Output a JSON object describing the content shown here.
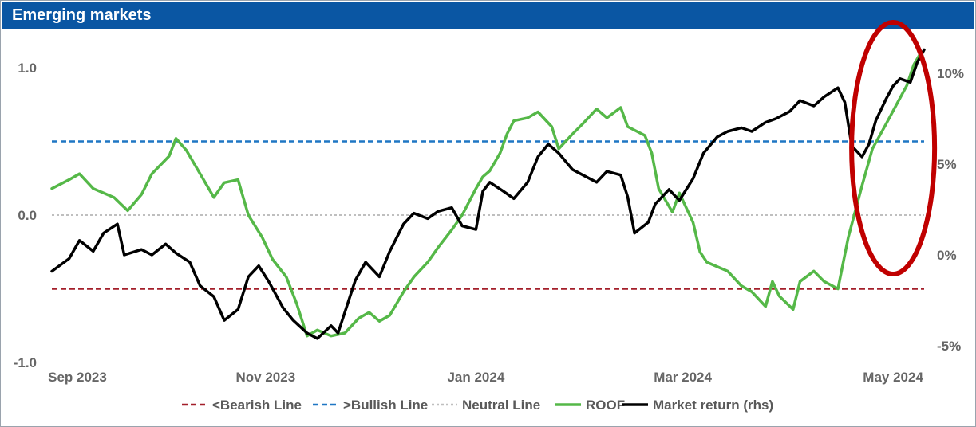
{
  "title": "Emerging markets",
  "chart_data": {
    "type": "line",
    "title": "Emerging markets",
    "x_range": [
      "2023-08-31",
      "2024-05-10"
    ],
    "x_ticks": [
      {
        "label": "Sep 2023",
        "date": "2023-09-01"
      },
      {
        "label": "Nov 2023",
        "date": "2023-11-01"
      },
      {
        "label": "Jan 2024",
        "date": "2024-01-01"
      },
      {
        "label": "Mar 2024",
        "date": "2024-03-01"
      },
      {
        "label": "May 2024",
        "date": "2024-05-01"
      }
    ],
    "y_left": {
      "ticks": [
        "1.0",
        "0.0",
        "-1.0"
      ],
      "values": [
        1.0,
        0.0,
        -1.0
      ],
      "range": [
        -1.0,
        1.25
      ]
    },
    "y_right": {
      "ticks": [
        "10%",
        "5%",
        "0%",
        "-5%"
      ],
      "values": [
        10,
        5,
        0,
        -5
      ],
      "range": [
        -6,
        11.5
      ]
    },
    "reference_lines": [
      {
        "name": "<Bearish Line",
        "value": -0.5,
        "color": "#a31f2a",
        "dash": "dashed"
      },
      {
        "name": ">Bullish Line",
        "value": 0.5,
        "color": "#1f77c4",
        "dash": "dashed"
      },
      {
        "name": "Neutral Line",
        "value": 0.0,
        "color": "#bfbfbf",
        "dash": "dotted"
      }
    ],
    "series": [
      {
        "name": "ROOF",
        "axis": "left",
        "color": "#55b848",
        "points": [
          [
            "2023-08-31",
            0.18
          ],
          [
            "2023-09-05",
            0.24
          ],
          [
            "2023-09-08",
            0.28
          ],
          [
            "2023-09-12",
            0.18
          ],
          [
            "2023-09-18",
            0.12
          ],
          [
            "2023-09-22",
            0.03
          ],
          [
            "2023-09-26",
            0.14
          ],
          [
            "2023-09-29",
            0.28
          ],
          [
            "2023-10-04",
            0.4
          ],
          [
            "2023-10-06",
            0.52
          ],
          [
            "2023-10-09",
            0.44
          ],
          [
            "2023-10-13",
            0.28
          ],
          [
            "2023-10-17",
            0.12
          ],
          [
            "2023-10-20",
            0.22
          ],
          [
            "2023-10-24",
            0.24
          ],
          [
            "2023-10-27",
            0.0
          ],
          [
            "2023-10-31",
            -0.15
          ],
          [
            "2023-11-03",
            -0.3
          ],
          [
            "2023-11-07",
            -0.42
          ],
          [
            "2023-11-10",
            -0.6
          ],
          [
            "2023-11-13",
            -0.82
          ],
          [
            "2023-11-16",
            -0.78
          ],
          [
            "2023-11-20",
            -0.82
          ],
          [
            "2023-11-24",
            -0.8
          ],
          [
            "2023-11-28",
            -0.7
          ],
          [
            "2023-12-01",
            -0.66
          ],
          [
            "2023-12-04",
            -0.72
          ],
          [
            "2023-12-07",
            -0.68
          ],
          [
            "2023-12-11",
            -0.52
          ],
          [
            "2023-12-14",
            -0.42
          ],
          [
            "2023-12-18",
            -0.32
          ],
          [
            "2023-12-21",
            -0.22
          ],
          [
            "2023-12-25",
            -0.1
          ],
          [
            "2023-12-28",
            0.0
          ],
          [
            "2024-01-01",
            0.18
          ],
          [
            "2024-01-03",
            0.26
          ],
          [
            "2024-01-05",
            0.3
          ],
          [
            "2024-01-08",
            0.42
          ],
          [
            "2024-01-10",
            0.55
          ],
          [
            "2024-01-12",
            0.64
          ],
          [
            "2024-01-16",
            0.66
          ],
          [
            "2024-01-19",
            0.7
          ],
          [
            "2024-01-23",
            0.6
          ],
          [
            "2024-01-25",
            0.45
          ],
          [
            "2024-01-29",
            0.55
          ],
          [
            "2024-02-01",
            0.62
          ],
          [
            "2024-02-05",
            0.72
          ],
          [
            "2024-02-08",
            0.66
          ],
          [
            "2024-02-12",
            0.73
          ],
          [
            "2024-02-14",
            0.6
          ],
          [
            "2024-02-19",
            0.54
          ],
          [
            "2024-02-21",
            0.42
          ],
          [
            "2024-02-23",
            0.18
          ],
          [
            "2024-02-27",
            0.02
          ],
          [
            "2024-02-29",
            0.15
          ],
          [
            "2024-03-04",
            -0.05
          ],
          [
            "2024-03-06",
            -0.25
          ],
          [
            "2024-03-08",
            -0.32
          ],
          [
            "2024-03-12",
            -0.36
          ],
          [
            "2024-03-14",
            -0.38
          ],
          [
            "2024-03-18",
            -0.48
          ],
          [
            "2024-03-21",
            -0.52
          ],
          [
            "2024-03-25",
            -0.62
          ],
          [
            "2024-03-27",
            -0.45
          ],
          [
            "2024-03-29",
            -0.55
          ],
          [
            "2024-04-02",
            -0.64
          ],
          [
            "2024-04-04",
            -0.45
          ],
          [
            "2024-04-08",
            -0.38
          ],
          [
            "2024-04-11",
            -0.45
          ],
          [
            "2024-04-15",
            -0.5
          ],
          [
            "2024-04-18",
            -0.15
          ],
          [
            "2024-04-22",
            0.2
          ],
          [
            "2024-04-25",
            0.45
          ],
          [
            "2024-04-29",
            0.62
          ],
          [
            "2024-05-02",
            0.75
          ],
          [
            "2024-05-05",
            0.88
          ],
          [
            "2024-05-07",
            1.02
          ],
          [
            "2024-05-09",
            1.1
          ]
        ]
      },
      {
        "name": "Market return (rhs)",
        "axis": "right",
        "color": "#000000",
        "points": [
          [
            "2023-08-31",
            -0.9
          ],
          [
            "2023-09-05",
            -0.2
          ],
          [
            "2023-09-08",
            0.8
          ],
          [
            "2023-09-12",
            0.2
          ],
          [
            "2023-09-15",
            1.2
          ],
          [
            "2023-09-19",
            1.7
          ],
          [
            "2023-09-21",
            0.0
          ],
          [
            "2023-09-26",
            0.3
          ],
          [
            "2023-09-29",
            0.0
          ],
          [
            "2023-10-03",
            0.6
          ],
          [
            "2023-10-06",
            0.1
          ],
          [
            "2023-10-10",
            -0.4
          ],
          [
            "2023-10-13",
            -1.7
          ],
          [
            "2023-10-17",
            -2.3
          ],
          [
            "2023-10-20",
            -3.6
          ],
          [
            "2023-10-24",
            -3.0
          ],
          [
            "2023-10-27",
            -1.2
          ],
          [
            "2023-10-30",
            -0.6
          ],
          [
            "2023-11-02",
            -1.5
          ],
          [
            "2023-11-06",
            -2.9
          ],
          [
            "2023-11-09",
            -3.6
          ],
          [
            "2023-11-13",
            -4.3
          ],
          [
            "2023-11-16",
            -4.6
          ],
          [
            "2023-11-20",
            -3.9
          ],
          [
            "2023-11-22",
            -4.3
          ],
          [
            "2023-11-27",
            -1.4
          ],
          [
            "2023-11-30",
            -0.4
          ],
          [
            "2023-12-04",
            -1.2
          ],
          [
            "2023-12-07",
            0.2
          ],
          [
            "2023-12-11",
            1.7
          ],
          [
            "2023-12-14",
            2.3
          ],
          [
            "2023-12-18",
            2.0
          ],
          [
            "2023-12-21",
            2.4
          ],
          [
            "2023-12-25",
            2.6
          ],
          [
            "2023-12-28",
            1.6
          ],
          [
            "2024-01-01",
            1.4
          ],
          [
            "2024-01-03",
            3.5
          ],
          [
            "2024-01-05",
            4.0
          ],
          [
            "2024-01-09",
            3.5
          ],
          [
            "2024-01-12",
            3.1
          ],
          [
            "2024-01-16",
            4.0
          ],
          [
            "2024-01-19",
            5.4
          ],
          [
            "2024-01-22",
            6.1
          ],
          [
            "2024-01-25",
            5.6
          ],
          [
            "2024-01-29",
            4.7
          ],
          [
            "2024-02-01",
            4.4
          ],
          [
            "2024-02-05",
            4.0
          ],
          [
            "2024-02-08",
            4.6
          ],
          [
            "2024-02-12",
            4.4
          ],
          [
            "2024-02-14",
            3.2
          ],
          [
            "2024-02-16",
            1.2
          ],
          [
            "2024-02-20",
            1.8
          ],
          [
            "2024-02-22",
            2.8
          ],
          [
            "2024-02-26",
            3.6
          ],
          [
            "2024-02-29",
            3.0
          ],
          [
            "2024-03-04",
            4.2
          ],
          [
            "2024-03-07",
            5.6
          ],
          [
            "2024-03-11",
            6.5
          ],
          [
            "2024-03-14",
            6.8
          ],
          [
            "2024-03-18",
            7.0
          ],
          [
            "2024-03-21",
            6.8
          ],
          [
            "2024-03-25",
            7.3
          ],
          [
            "2024-03-28",
            7.5
          ],
          [
            "2024-04-01",
            7.9
          ],
          [
            "2024-04-04",
            8.5
          ],
          [
            "2024-04-08",
            8.2
          ],
          [
            "2024-04-11",
            8.7
          ],
          [
            "2024-04-15",
            9.2
          ],
          [
            "2024-04-17",
            8.4
          ],
          [
            "2024-04-19",
            6.0
          ],
          [
            "2024-04-22",
            5.4
          ],
          [
            "2024-04-24",
            6.1
          ],
          [
            "2024-04-26",
            7.4
          ],
          [
            "2024-04-29",
            8.6
          ],
          [
            "2024-05-01",
            9.3
          ],
          [
            "2024-05-03",
            9.7
          ],
          [
            "2024-05-06",
            9.5
          ],
          [
            "2024-05-08",
            10.6
          ],
          [
            "2024-05-10",
            11.3
          ]
        ]
      }
    ],
    "legend": {
      "placement": "bottom",
      "entries": [
        {
          "label": "<Bearish Line",
          "color": "#a31f2a",
          "style": "dashed"
        },
        {
          "label": ">Bullish Line",
          "color": "#1f77c4",
          "style": "dashed"
        },
        {
          "label": "Neutral Line",
          "color": "#bfbfbf",
          "style": "dotted"
        },
        {
          "label": "ROOF",
          "color": "#55b848",
          "style": "solid"
        },
        {
          "label": "Market return (rhs)",
          "color": "#000000",
          "style": "solid"
        }
      ]
    },
    "annotation": {
      "shape": "ellipse",
      "color": "#c00000",
      "target": "latest readings"
    },
    "grid": false
  }
}
